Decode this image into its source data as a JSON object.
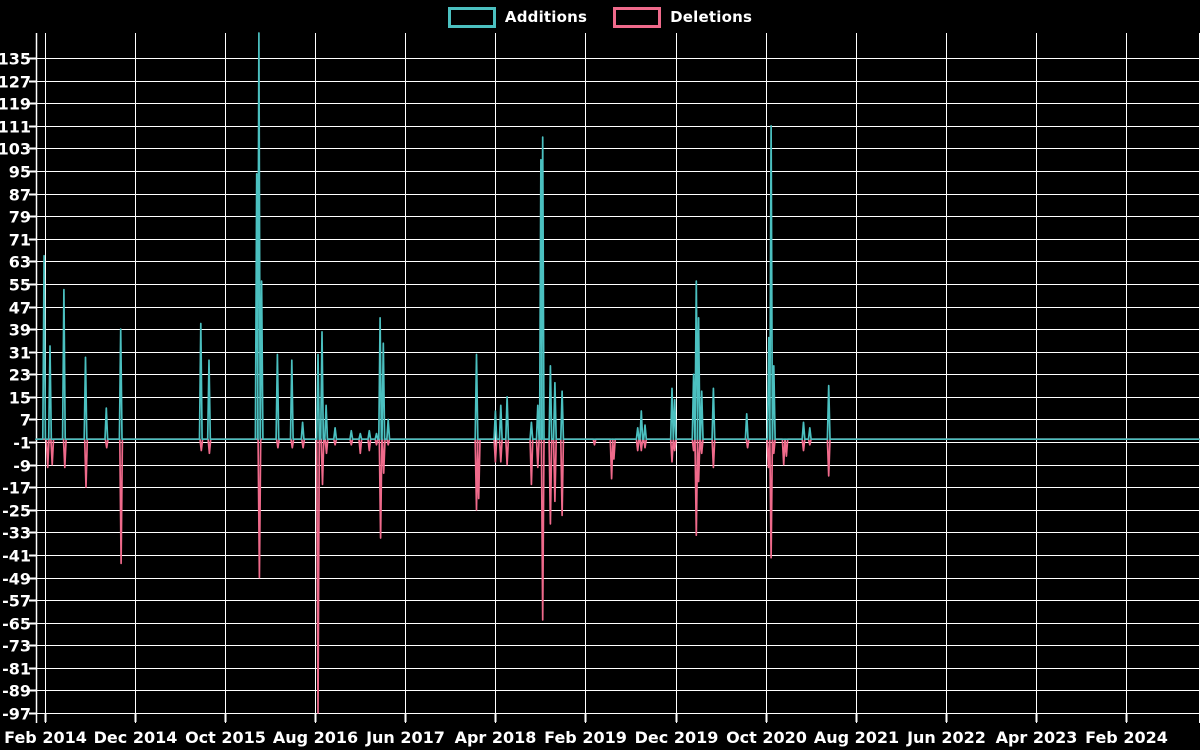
{
  "legend": {
    "additions_label": "Additions",
    "deletions_label": "Deletions"
  },
  "colors": {
    "background": "#000000",
    "grid": "#ffffff",
    "text": "#ffffff",
    "additions": "#4BC0C0",
    "deletions": "#EF6A8B"
  },
  "chart_data": {
    "type": "line",
    "title": "",
    "xlabel": "",
    "ylabel": "",
    "grid": true,
    "legend_position": "top-center",
    "x_axis": {
      "tick_labels": [
        "Feb 2014",
        "Dec 2014",
        "Oct 2015",
        "Aug 2016",
        "Jun 2017",
        "Apr 2018",
        "Feb 2019",
        "Dec 2019",
        "Oct 2020",
        "Aug 2021",
        "Jun 2022",
        "Apr 2023",
        "Feb 2024"
      ],
      "tick_month_offsets": [
        0,
        10,
        20,
        30,
        40,
        50,
        60,
        70,
        80,
        90,
        100,
        110,
        120
      ],
      "months_per_tick": 10
    },
    "y_axis": {
      "ticks": [
        135,
        127,
        119,
        111,
        103,
        95,
        87,
        79,
        71,
        63,
        55,
        47,
        39,
        31,
        23,
        15,
        7,
        -1,
        -9,
        -17,
        -25,
        -33,
        -41,
        -49,
        -57,
        -65,
        -73,
        -81,
        -89,
        -97
      ],
      "min": -97,
      "max": 135,
      "step": 8
    },
    "series": [
      {
        "name": "Additions",
        "color_key": "additions",
        "baseline": 0,
        "points_format": "[months_since_Feb_2014, value]",
        "points": [
          [
            -0.1,
            65
          ],
          [
            0.55,
            33
          ],
          [
            2.1,
            53
          ],
          [
            4.5,
            29
          ],
          [
            6.8,
            11
          ],
          [
            8.4,
            39
          ],
          [
            17.3,
            41
          ],
          [
            18.2,
            28
          ],
          [
            23.5,
            94
          ],
          [
            23.75,
            144
          ],
          [
            24.05,
            56
          ],
          [
            25.8,
            30
          ],
          [
            27.4,
            28
          ],
          [
            28.6,
            6
          ],
          [
            30.3,
            30
          ],
          [
            30.75,
            38
          ],
          [
            31.2,
            12
          ],
          [
            32.2,
            4
          ],
          [
            34.0,
            3
          ],
          [
            35.0,
            2
          ],
          [
            36.0,
            3
          ],
          [
            36.8,
            2
          ],
          [
            37.2,
            43
          ],
          [
            37.55,
            34
          ],
          [
            38.1,
            7
          ],
          [
            47.9,
            30
          ],
          [
            50.0,
            10
          ],
          [
            50.6,
            12
          ],
          [
            51.3,
            15
          ],
          [
            54.0,
            6
          ],
          [
            54.7,
            12
          ],
          [
            55.05,
            99
          ],
          [
            55.25,
            107
          ],
          [
            56.1,
            26
          ],
          [
            56.6,
            20
          ],
          [
            57.4,
            17
          ],
          [
            65.8,
            4
          ],
          [
            66.2,
            10
          ],
          [
            66.6,
            5
          ],
          [
            69.6,
            18
          ],
          [
            69.9,
            14
          ],
          [
            72.0,
            23
          ],
          [
            72.3,
            56
          ],
          [
            72.55,
            43
          ],
          [
            72.9,
            17
          ],
          [
            74.2,
            18
          ],
          [
            77.9,
            9
          ],
          [
            80.35,
            36
          ],
          [
            80.6,
            111
          ],
          [
            80.9,
            26
          ],
          [
            84.2,
            6
          ],
          [
            84.9,
            4
          ],
          [
            87.0,
            19
          ]
        ]
      },
      {
        "name": "Deletions",
        "color_key": "deletions",
        "baseline": 0,
        "points_format": "[months_since_Feb_2014, value]",
        "points": [
          [
            0.3,
            -10
          ],
          [
            0.8,
            -9
          ],
          [
            2.2,
            -10
          ],
          [
            4.55,
            -17
          ],
          [
            6.85,
            -3
          ],
          [
            8.45,
            -44
          ],
          [
            17.35,
            -4
          ],
          [
            18.25,
            -5
          ],
          [
            23.8,
            -49
          ],
          [
            25.85,
            -3
          ],
          [
            27.45,
            -3
          ],
          [
            28.65,
            -3
          ],
          [
            30.3,
            -97
          ],
          [
            30.8,
            -16
          ],
          [
            31.25,
            -5
          ],
          [
            32.2,
            -2
          ],
          [
            34.0,
            -2
          ],
          [
            35.0,
            -5
          ],
          [
            36.0,
            -4
          ],
          [
            36.8,
            -2
          ],
          [
            37.25,
            -35
          ],
          [
            37.6,
            -12
          ],
          [
            38.1,
            -2
          ],
          [
            47.9,
            -25
          ],
          [
            48.15,
            -21
          ],
          [
            50.0,
            -8
          ],
          [
            50.6,
            -8
          ],
          [
            51.3,
            -9
          ],
          [
            54.0,
            -16
          ],
          [
            54.7,
            -10
          ],
          [
            55.25,
            -64
          ],
          [
            56.1,
            -30
          ],
          [
            56.6,
            -22
          ],
          [
            57.4,
            -27
          ],
          [
            61.0,
            -2
          ],
          [
            62.9,
            -14
          ],
          [
            63.15,
            -7
          ],
          [
            65.8,
            -4
          ],
          [
            66.2,
            -4
          ],
          [
            66.6,
            -3
          ],
          [
            69.6,
            -8
          ],
          [
            69.9,
            -4
          ],
          [
            72.0,
            -4
          ],
          [
            72.3,
            -34
          ],
          [
            72.55,
            -15
          ],
          [
            72.9,
            -5
          ],
          [
            74.2,
            -10
          ],
          [
            78.0,
            -3
          ],
          [
            80.3,
            -10
          ],
          [
            80.6,
            -42
          ],
          [
            80.9,
            -5
          ],
          [
            82.0,
            -9
          ],
          [
            82.3,
            -6
          ],
          [
            84.2,
            -4
          ],
          [
            84.9,
            -2
          ],
          [
            87.0,
            -13
          ]
        ]
      }
    ],
    "notes": "Tallest additions spike (early 2016) is clipped at the top of the plot area."
  }
}
